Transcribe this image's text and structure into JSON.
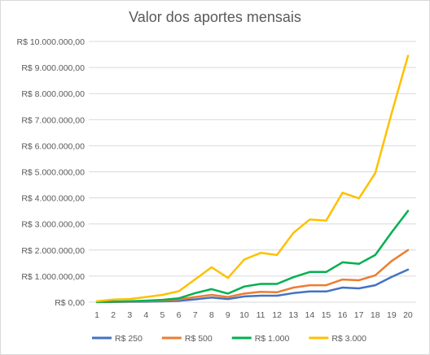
{
  "chart_data": {
    "type": "line",
    "title": "Valor dos aportes mensais",
    "categories": [
      "1",
      "2",
      "3",
      "4",
      "5",
      "6",
      "7",
      "8",
      "9",
      "10",
      "11",
      "12",
      "13",
      "14",
      "15",
      "16",
      "17",
      "18",
      "19",
      "20"
    ],
    "y_ticks": [
      "R$ 0,00",
      "R$ 1.000.000,00",
      "R$ 2.000.000,00",
      "R$ 3.000.000,00",
      "R$ 4.000.000,00",
      "R$ 5.000.000,00",
      "R$ 6.000.000,00",
      "R$ 7.000.000,00",
      "R$ 8.000.000,00",
      "R$ 9.000.000,00",
      "R$ 10.000.000,00"
    ],
    "ylim": [
      0,
      10000000
    ],
    "grid": true,
    "legend_position": "bottom",
    "series": [
      {
        "name": "R$ 250",
        "color": "#4472c4",
        "values": [
          3000,
          8000,
          15000,
          20000,
          30000,
          55000,
          110000,
          180000,
          120000,
          220000,
          250000,
          250000,
          350000,
          410000,
          410000,
          560000,
          530000,
          650000,
          970000,
          1250000
        ]
      },
      {
        "name": "R$ 500",
        "color": "#ed7d31",
        "values": [
          6000,
          15000,
          28000,
          40000,
          60000,
          110000,
          200000,
          280000,
          200000,
          330000,
          400000,
          380000,
          560000,
          650000,
          650000,
          870000,
          840000,
          1030000,
          1580000,
          2000000
        ]
      },
      {
        "name": "R$ 1.000",
        "color": "#00b050",
        "values": [
          10000,
          25000,
          35000,
          60000,
          90000,
          150000,
          350000,
          500000,
          330000,
          600000,
          700000,
          700000,
          960000,
          1160000,
          1160000,
          1530000,
          1470000,
          1810000,
          2680000,
          3500000
        ]
      },
      {
        "name": "R$ 3.000",
        "color": "#ffc000",
        "values": [
          40000,
          100000,
          120000,
          200000,
          280000,
          420000,
          880000,
          1340000,
          930000,
          1640000,
          1890000,
          1810000,
          2660000,
          3170000,
          3130000,
          4200000,
          3980000,
          4950000,
          7250000,
          9450000
        ]
      }
    ]
  }
}
